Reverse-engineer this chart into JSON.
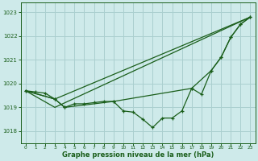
{
  "xlabel": "Graphe pression niveau de la mer (hPa)",
  "bg_color": "#ceeaea",
  "grid_color": "#aacfcf",
  "line_color": "#1a5e1a",
  "ylim": [
    1017.5,
    1023.4
  ],
  "xlim": [
    -0.5,
    23.5
  ],
  "yticks": [
    1018,
    1019,
    1020,
    1021,
    1022,
    1023
  ],
  "xticks": [
    0,
    1,
    2,
    3,
    4,
    5,
    6,
    7,
    8,
    9,
    10,
    11,
    12,
    13,
    14,
    15,
    16,
    17,
    18,
    19,
    20,
    21,
    22,
    23
  ],
  "line1_x": [
    0,
    1,
    2,
    3,
    4,
    5,
    6,
    7,
    8,
    9,
    10,
    11,
    12,
    13,
    14,
    15,
    16,
    17,
    18,
    19,
    20,
    21,
    22,
    23
  ],
  "line1_y": [
    1019.7,
    1019.65,
    1019.6,
    1019.35,
    1019.0,
    1019.15,
    1019.15,
    1019.2,
    1019.25,
    1019.25,
    1018.85,
    1018.8,
    1018.5,
    1018.15,
    1018.55,
    1018.55,
    1018.85,
    1019.8,
    1019.55,
    1020.55,
    1021.1,
    1021.95,
    1022.5,
    1022.8
  ],
  "line2_x": [
    0,
    3,
    4,
    9,
    17,
    19,
    20,
    21,
    22,
    23
  ],
  "line2_y": [
    1019.7,
    1019.35,
    1019.0,
    1019.25,
    1019.8,
    1020.55,
    1021.1,
    1021.95,
    1022.5,
    1022.8
  ],
  "line3_x": [
    0,
    3,
    23
  ],
  "line3_y": [
    1019.7,
    1019.35,
    1022.8
  ],
  "line4_x": [
    0,
    3,
    23
  ],
  "line4_y": [
    1019.7,
    1019.0,
    1022.8
  ]
}
